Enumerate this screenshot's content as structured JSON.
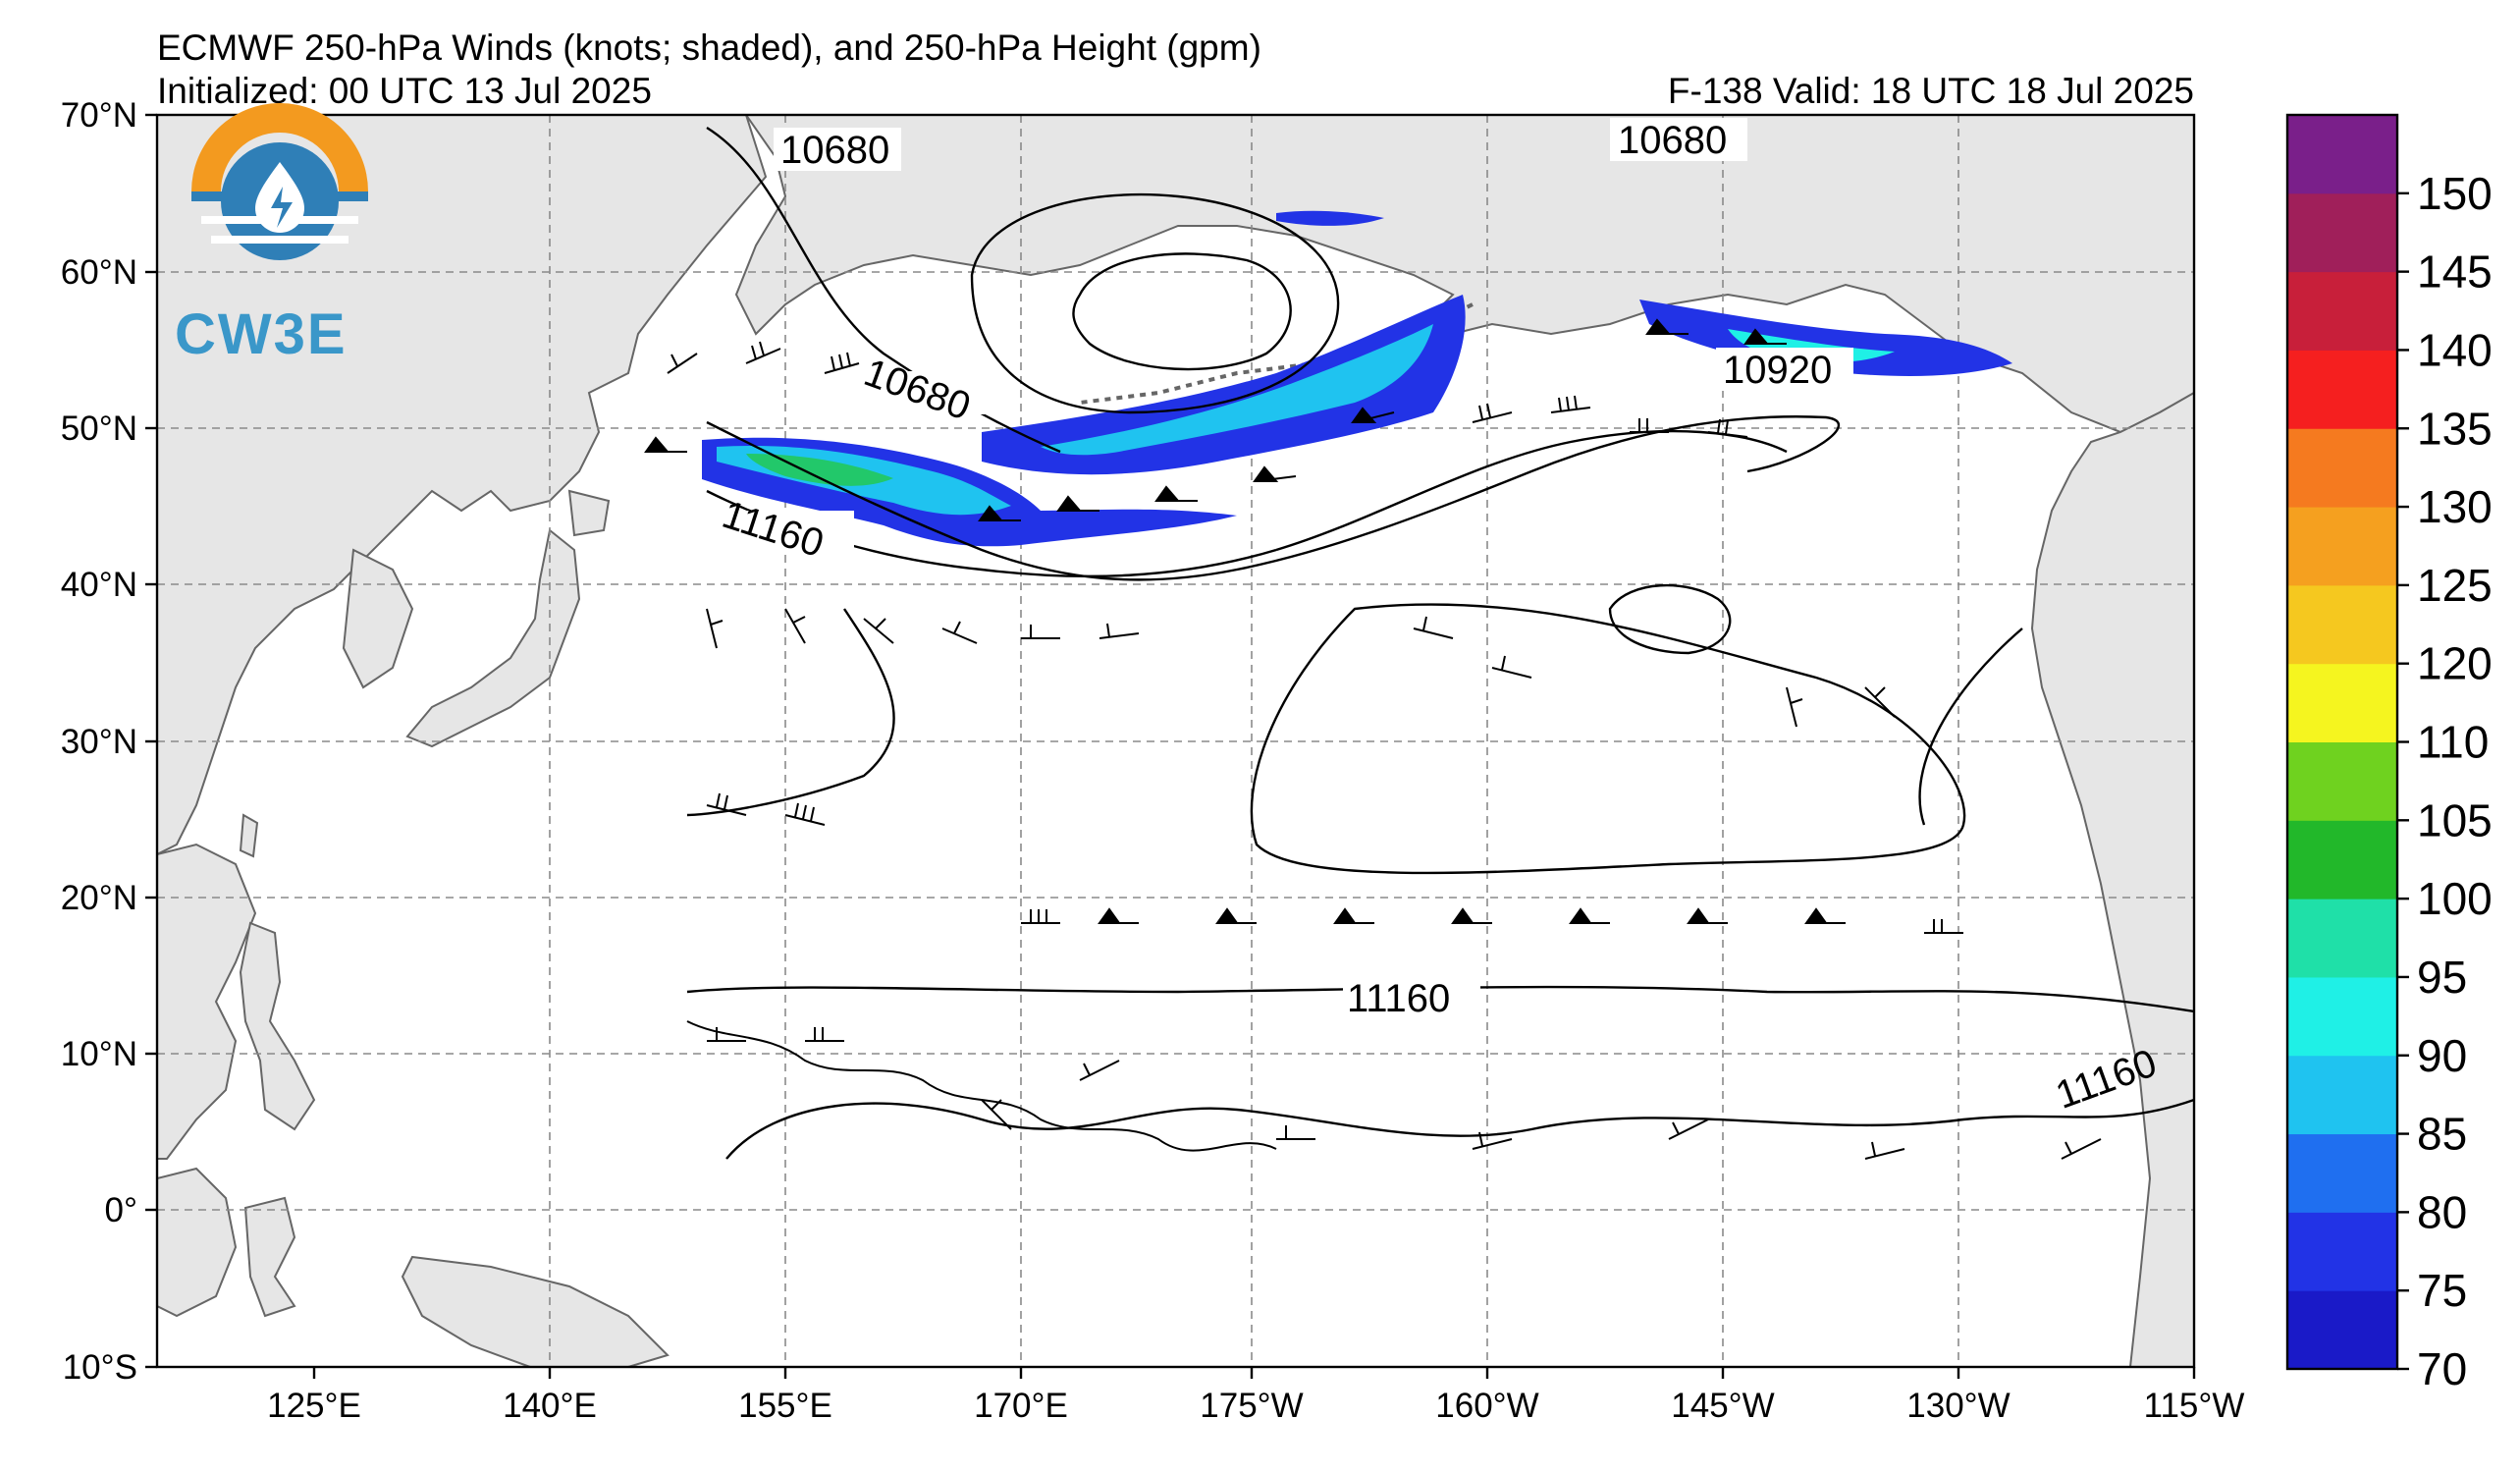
{
  "header": {
    "title": "ECMWF 250-hPa Winds (knots; shaded), and 250-hPa Height (gpm)",
    "initialized": "Initialized: 00 UTC 13 Jul 2025",
    "valid": "F-138  Valid: 18 UTC 18 Jul 2025"
  },
  "logo": {
    "text": "CW3E",
    "icon": "water-drop-sun-logo-icon"
  },
  "axes": {
    "lat_labels": [
      "70°N",
      "60°N",
      "50°N",
      "40°N",
      "30°N",
      "20°N",
      "10°N",
      "0°",
      "10°S"
    ],
    "lon_labels": [
      "125°E",
      "140°E",
      "155°E",
      "170°E",
      "175°W",
      "160°W",
      "145°W",
      "130°W",
      "115°W"
    ]
  },
  "contour_labels": [
    "10680",
    "10680",
    "10680",
    "10920",
    "11160",
    "11160",
    "11160"
  ],
  "colorbar": {
    "labels": [
      "150",
      "145",
      "140",
      "135",
      "130",
      "125",
      "120",
      "110",
      "105",
      "100",
      "95",
      "90",
      "85",
      "80",
      "75",
      "70"
    ],
    "colors": [
      "#1a1ac8",
      "#2233e6",
      "#1f6ff0",
      "#1fc3f0",
      "#1ff0e6",
      "#1fe0a8",
      "#22b82a",
      "#6fd21f",
      "#f5f51f",
      "#f5c81f",
      "#f5a01f",
      "#f57a1f",
      "#f51f1f",
      "#c81f3a",
      "#a01f5a",
      "#7a1f8a"
    ]
  },
  "colors": {
    "land": "#e6e6e6",
    "ocean": "#ffffff",
    "grid": "#888888",
    "jet_blue": "#2233e6",
    "jet_cyan": "#1ff0e6",
    "jet_green": "#22c86a"
  }
}
